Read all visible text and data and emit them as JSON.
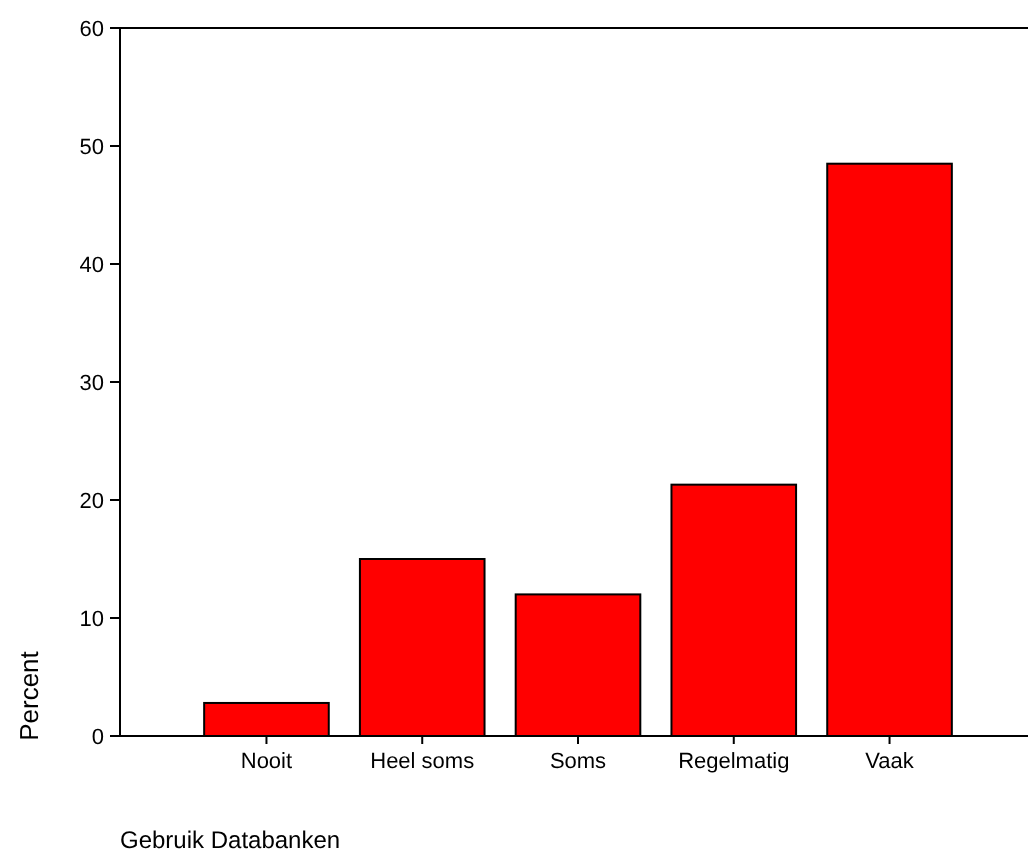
{
  "chart_data": {
    "type": "bar",
    "xlabel": "Gebruik Databanken",
    "ylabel": "Percent",
    "categories": [
      "Nooit",
      "Heel soms",
      "Soms",
      "Regelmatig",
      "Vaak"
    ],
    "values": [
      2.8,
      15,
      12,
      21.3,
      48.5
    ],
    "color": "#ff0000",
    "ylim": [
      0,
      60
    ],
    "yticks": [
      0,
      10,
      20,
      30,
      40,
      50,
      60
    ],
    "grid": false
  }
}
